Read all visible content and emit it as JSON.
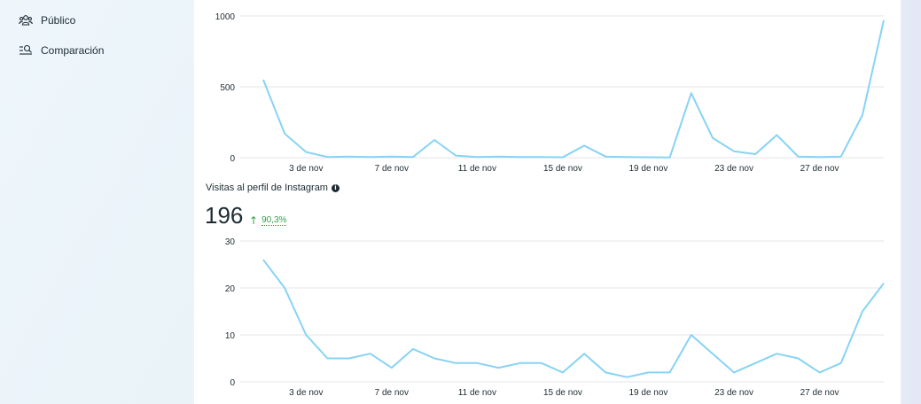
{
  "sidebar": {
    "items": [
      {
        "label": "Público",
        "icon": "audience-icon"
      },
      {
        "label": "Comparación",
        "icon": "compare-icon"
      }
    ]
  },
  "metric2": {
    "title": "Visitas al perfil de Instagram",
    "value": "196",
    "change": "90,3%"
  },
  "chart_data": [
    {
      "type": "line",
      "title": "",
      "xlabel": "",
      "ylabel": "",
      "ylim": [
        0,
        1000
      ],
      "yticks": [
        "0",
        "500",
        "1000"
      ],
      "xtick_labels": [
        "3 de nov",
        "7 de nov",
        "11 de nov",
        "15 de nov",
        "19 de nov",
        "23 de nov",
        "27 de nov"
      ],
      "x": [
        1,
        2,
        3,
        4,
        5,
        6,
        7,
        8,
        9,
        10,
        11,
        12,
        13,
        14,
        15,
        16,
        17,
        18,
        19,
        20,
        21,
        22,
        23,
        24,
        25,
        26,
        27,
        28,
        29,
        30
      ],
      "values": [
        550,
        170,
        40,
        5,
        8,
        5,
        8,
        5,
        125,
        15,
        5,
        8,
        5,
        5,
        3,
        85,
        8,
        5,
        3,
        2,
        455,
        140,
        45,
        25,
        160,
        8,
        5,
        8,
        300,
        970
      ],
      "color": "#87d3f5"
    },
    {
      "type": "line",
      "title": "",
      "xlabel": "",
      "ylabel": "",
      "ylim": [
        0,
        30
      ],
      "yticks": [
        "0",
        "10",
        "20",
        "30"
      ],
      "xtick_labels": [
        "3 de nov",
        "7 de nov",
        "11 de nov",
        "15 de nov",
        "19 de nov",
        "23 de nov",
        "27 de nov"
      ],
      "x": [
        1,
        2,
        3,
        4,
        5,
        6,
        7,
        8,
        9,
        10,
        11,
        12,
        13,
        14,
        15,
        16,
        17,
        18,
        19,
        20,
        21,
        22,
        23,
        24,
        25,
        26,
        27,
        28,
        29,
        30
      ],
      "values": [
        26,
        20,
        10,
        5,
        5,
        6,
        3,
        7,
        5,
        4,
        4,
        3,
        4,
        4,
        2,
        6,
        2,
        1,
        2,
        2,
        10,
        6,
        2,
        4,
        6,
        5,
        2,
        4,
        15,
        21
      ],
      "color": "#87d3f5"
    }
  ]
}
